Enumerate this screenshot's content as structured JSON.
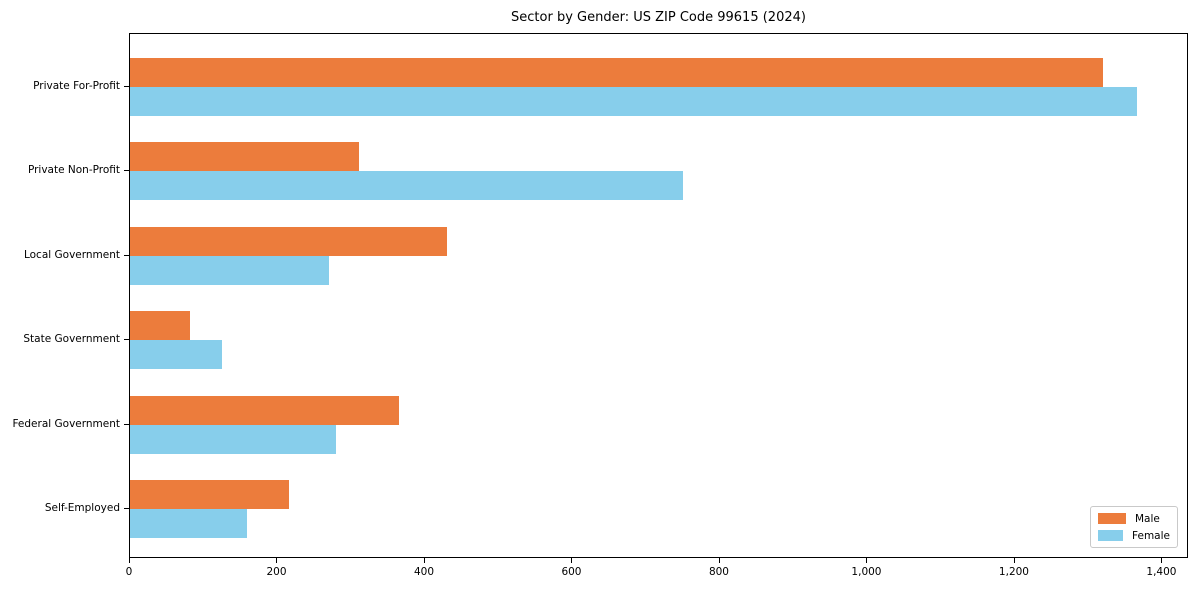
{
  "chart_data": {
    "type": "bar",
    "orientation": "horizontal",
    "title": "Sector by Gender: US ZIP Code 99615 (2024)",
    "categories": [
      "Private For-Profit",
      "Private Non-Profit",
      "Local Government",
      "State Government",
      "Federal Government",
      "Self-Employed"
    ],
    "series": [
      {
        "name": "Male",
        "color": "#ec7c3c",
        "values": [
          1320,
          310,
          430,
          82,
          365,
          215
        ]
      },
      {
        "name": "Female",
        "color": "#87ceeb",
        "values": [
          1365,
          750,
          270,
          125,
          280,
          158
        ]
      }
    ],
    "xlabel": "",
    "ylabel": "",
    "xlim": [
      0,
      1436
    ],
    "x_ticks": [
      0,
      200,
      400,
      600,
      800,
      1000,
      1200,
      1400
    ],
    "x_tick_labels": [
      "0",
      "200",
      "400",
      "600",
      "800",
      "1,000",
      "1,200",
      "1,400"
    ],
    "grid": false,
    "legend": {
      "position": "lower right",
      "entries": [
        "Male",
        "Female"
      ]
    }
  }
}
